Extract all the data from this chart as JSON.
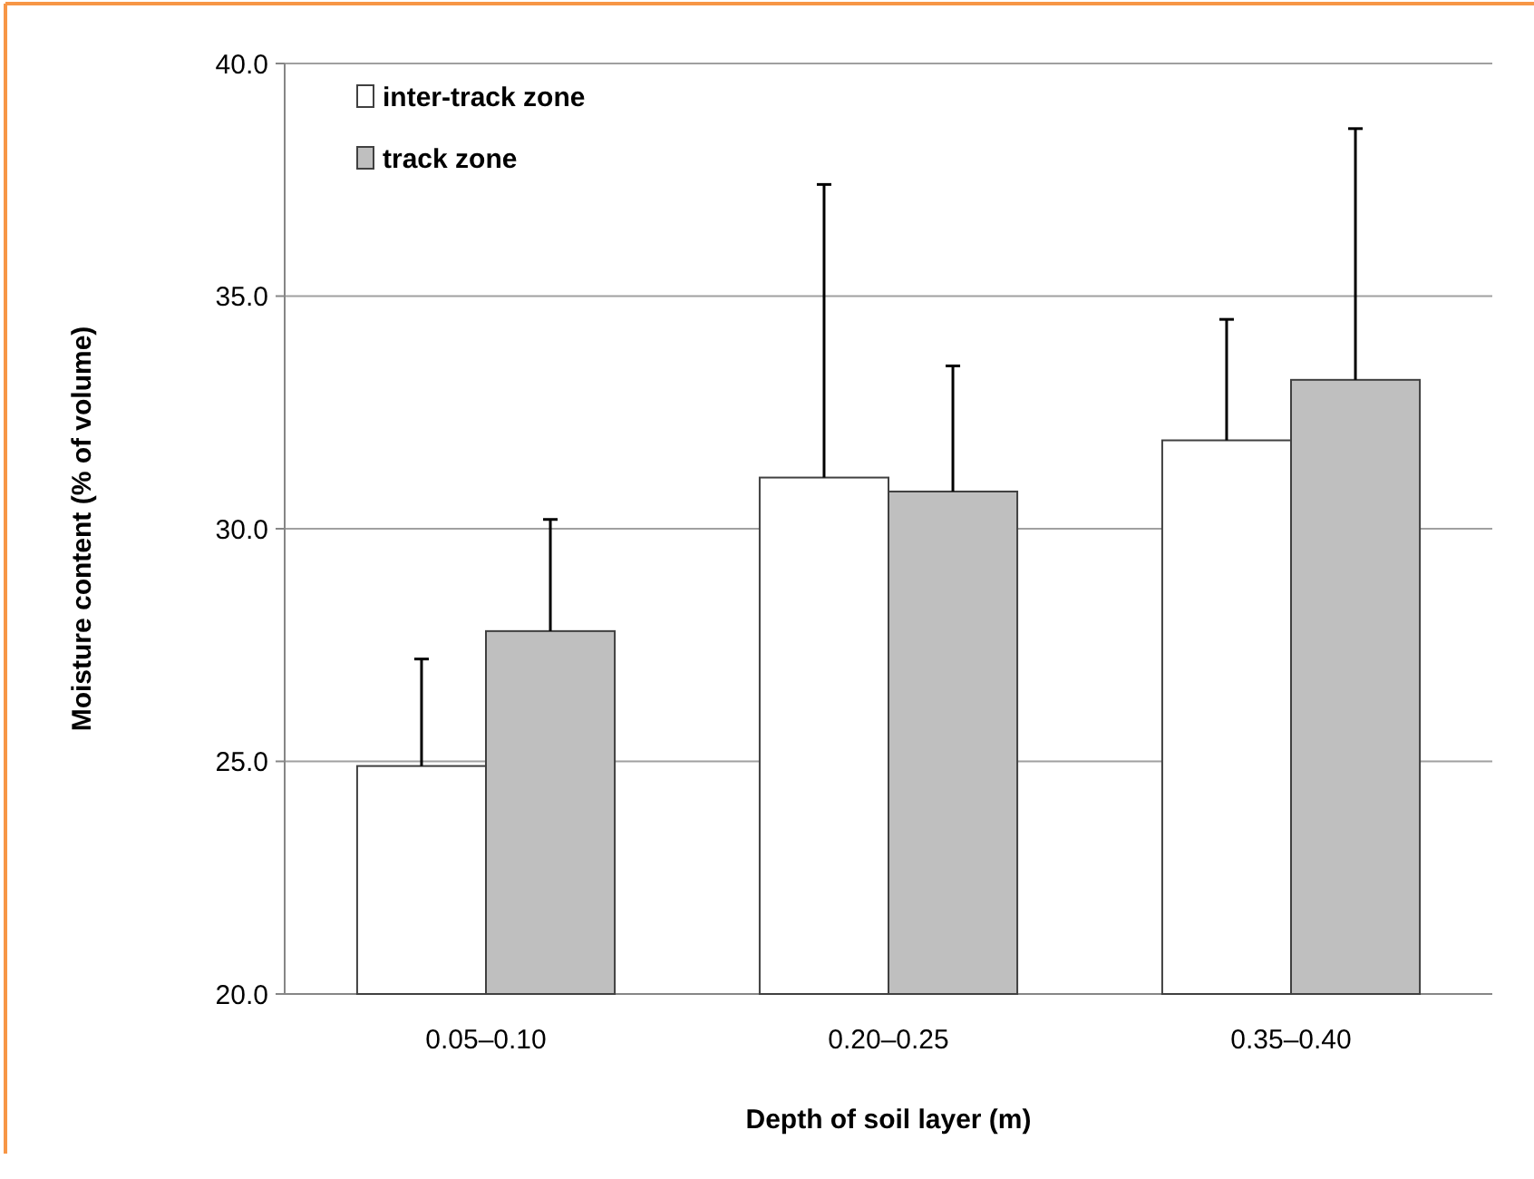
{
  "chart_data": {
    "type": "bar",
    "xlabel": "Depth of soil layer (m)",
    "ylabel": "Moisture content (% of volume)",
    "categories": [
      "0.05–0.10",
      "0.20–0.25",
      "0.35–0.40"
    ],
    "series": [
      {
        "name": "inter-track zone",
        "color": "#ffffff",
        "values": [
          24.9,
          31.1,
          31.9
        ],
        "errors": [
          [
            24.9,
            27.2
          ],
          [
            31.1,
            37.4
          ],
          [
            31.9,
            34.5
          ]
        ]
      },
      {
        "name": "track zone",
        "color": "#bfbfbf",
        "values": [
          27.8,
          30.8,
          33.2
        ],
        "errors": [
          [
            27.8,
            30.2
          ],
          [
            30.8,
            33.5
          ],
          [
            33.2,
            38.6
          ]
        ]
      }
    ],
    "ylim": [
      20,
      40
    ],
    "yticks": [
      {
        "value": 20,
        "label": "20.0"
      },
      {
        "value": 25,
        "label": "25.0"
      },
      {
        "value": 30,
        "label": "30.0"
      },
      {
        "value": 35,
        "label": "35.0"
      },
      {
        "value": 40,
        "label": "40.0"
      }
    ],
    "grid": "y",
    "legend": "top left"
  }
}
